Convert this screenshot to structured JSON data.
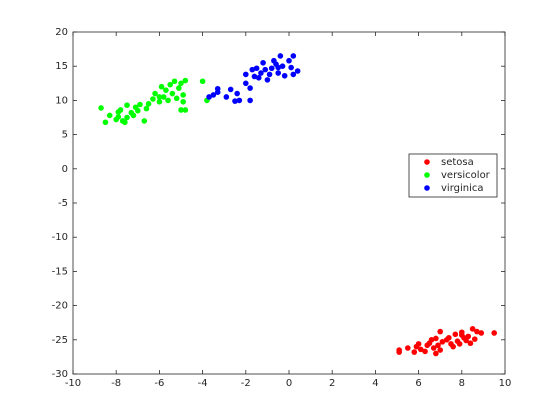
{
  "chart_data": {
    "type": "scatter",
    "xlim": [
      -10,
      10
    ],
    "xticks": [
      -10,
      -8,
      -6,
      -4,
      -2,
      0,
      2,
      4,
      6,
      8,
      10
    ],
    "ylim": [
      -30,
      20
    ],
    "yticks": [
      -30,
      -25,
      -20,
      -15,
      -10,
      -5,
      0,
      5,
      10,
      15,
      20
    ],
    "grid": false,
    "legend": "right",
    "series": [
      {
        "name": "setosa",
        "color": "#ff0000",
        "x": [
          5.1,
          5.1,
          5.5,
          5.8,
          5.9,
          6.0,
          6.1,
          6.3,
          6.5,
          6.6,
          6.7,
          6.8,
          6.8,
          6.9,
          7.0,
          7.0,
          7.1,
          7.4,
          7.5,
          7.6,
          7.7,
          7.8,
          7.9,
          8.0,
          8.1,
          8.2,
          8.3,
          8.4,
          8.5,
          8.6,
          8.7,
          8.9,
          9.5,
          7.3,
          6.4,
          8.0
        ],
        "values": [
          -26.5,
          -26.8,
          -26.2,
          -26.8,
          -26.0,
          -25.6,
          -26.4,
          -26.7,
          -25.5,
          -25.0,
          -26.2,
          -24.8,
          -27.0,
          -25.8,
          -26.5,
          -23.8,
          -25.3,
          -24.7,
          -25.6,
          -26.0,
          -24.2,
          -25.2,
          -25.6,
          -23.9,
          -24.7,
          -25.1,
          -24.5,
          -25.5,
          -23.4,
          -24.9,
          -23.8,
          -24.0,
          -24.0,
          -25.0,
          -25.8,
          -24.3
        ]
      },
      {
        "name": "versicolor",
        "color": "#00ff00",
        "x": [
          -8.7,
          -8.5,
          -8.3,
          -8.0,
          -7.9,
          -7.8,
          -7.7,
          -7.6,
          -7.5,
          -7.5,
          -7.3,
          -7.2,
          -7.1,
          -7.0,
          -6.9,
          -6.7,
          -6.6,
          -6.5,
          -6.3,
          -6.2,
          -6.0,
          -5.9,
          -5.8,
          -5.7,
          -5.6,
          -5.5,
          -5.4,
          -5.3,
          -5.2,
          -5.1,
          -5.0,
          -5.0,
          -4.9,
          -4.8,
          -4.8,
          -4.0,
          -3.8,
          -4.9,
          -7.9,
          -6.0
        ],
        "values": [
          8.9,
          6.8,
          7.8,
          7.2,
          7.6,
          8.6,
          7.0,
          6.8,
          7.5,
          9.3,
          8.2,
          7.8,
          9.0,
          8.5,
          9.4,
          7.0,
          8.8,
          9.5,
          10.2,
          11.0,
          9.8,
          12.0,
          10.5,
          11.5,
          10.0,
          12.3,
          11.0,
          12.8,
          10.3,
          11.8,
          8.6,
          12.5,
          9.8,
          12.9,
          8.6,
          12.8,
          10.0,
          10.8,
          8.3,
          10.5
        ]
      },
      {
        "name": "virginica",
        "color": "#0000ff",
        "x": [
          -3.7,
          -3.5,
          -3.3,
          -3.3,
          -2.9,
          -2.7,
          -2.5,
          -2.3,
          -2.4,
          -2.0,
          -1.8,
          -1.8,
          -1.6,
          -1.5,
          -1.4,
          -1.3,
          -1.2,
          -1.1,
          -1.0,
          -0.9,
          -0.8,
          -0.7,
          -0.6,
          -0.5,
          -0.4,
          -0.3,
          -0.2,
          0.0,
          0.1,
          0.2,
          0.2,
          0.4,
          -0.5,
          -1.7,
          -2.0
        ],
        "values": [
          10.5,
          10.8,
          11.2,
          11.7,
          10.5,
          11.6,
          9.9,
          10.0,
          11.0,
          12.5,
          11.8,
          10.0,
          13.5,
          14.7,
          13.3,
          14.0,
          15.5,
          14.5,
          13.0,
          13.8,
          14.7,
          15.8,
          15.3,
          14.0,
          16.5,
          15.0,
          13.6,
          15.8,
          14.8,
          16.5,
          13.8,
          14.3,
          14.8,
          14.5,
          13.8
        ]
      }
    ]
  }
}
